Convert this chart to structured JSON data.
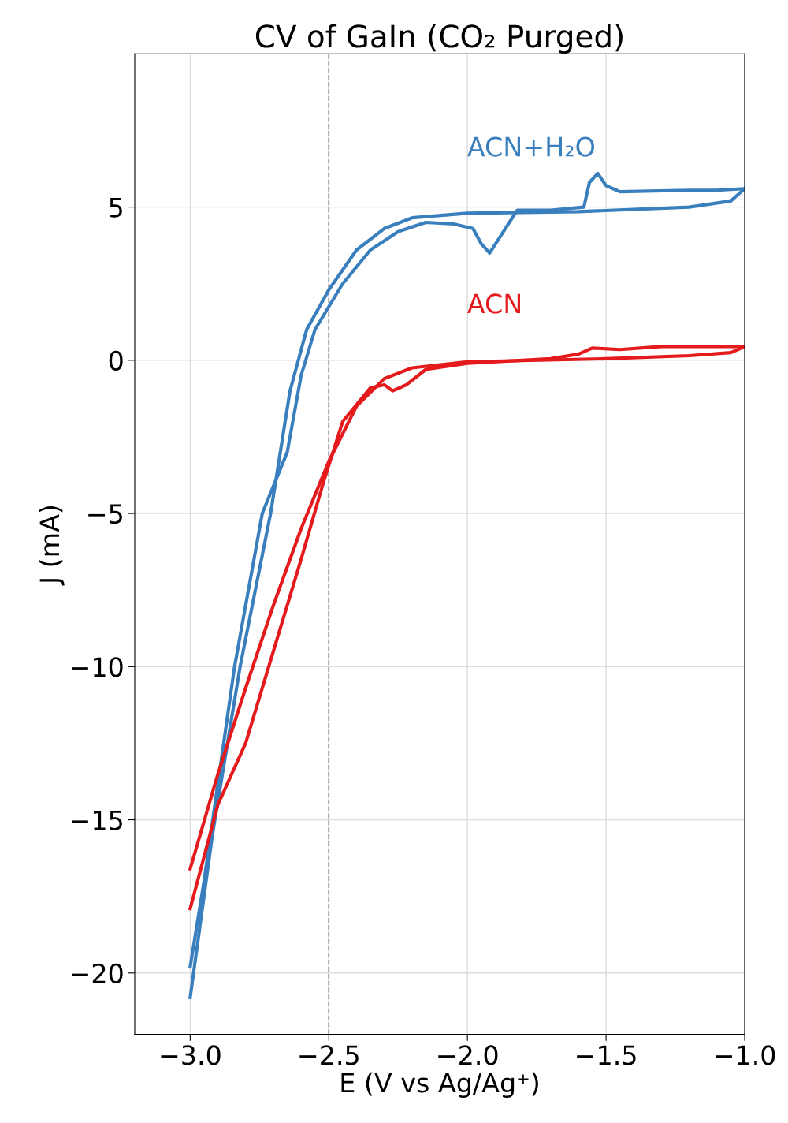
{
  "chart_data": {
    "type": "line",
    "title": "CV of GaIn (CO₂ Purged)",
    "xlabel": "E (V vs Ag/Ag⁺)",
    "ylabel": "J (mA)",
    "xlim": [
      -3.2,
      -1.0
    ],
    "xticks": [
      {
        "value": -3.0,
        "label": "−3.0"
      },
      {
        "value": -2.5,
        "label": "−2.5"
      },
      {
        "value": -2.0,
        "label": "−2.0"
      },
      {
        "value": -1.5,
        "label": "−1.5"
      },
      {
        "value": -1.0,
        "label": "−1.0"
      }
    ],
    "ylim": [
      -22,
      10
    ],
    "yticks": [
      {
        "value": -20,
        "label": "−20"
      },
      {
        "value": -15,
        "label": "−15"
      },
      {
        "value": -10,
        "label": "−10"
      },
      {
        "value": -5,
        "label": "−5"
      },
      0,
      5
    ],
    "grid": true,
    "line_style": "solid",
    "marker": "none",
    "ref_lines": [
      {
        "axis": "x",
        "value": -2.5,
        "color": "#808080",
        "line_style": "dashed"
      }
    ],
    "series": [
      {
        "name": "ACN+H₂O",
        "color": "#3a7fbd",
        "x": [
          -1.0,
          -1.1,
          -1.2,
          -1.45,
          -1.5,
          -1.53,
          -1.56,
          -1.58,
          -1.7,
          -1.82,
          -1.87,
          -1.92,
          -1.95,
          -1.98,
          -2.05,
          -2.15,
          -2.25,
          -2.35,
          -2.45,
          -2.55,
          -2.6,
          -2.65,
          -2.74,
          -2.84,
          -2.95,
          -3.0
        ],
        "values": [
          5.6,
          5.55,
          5.55,
          5.5,
          5.7,
          6.1,
          5.8,
          5.0,
          4.9,
          4.9,
          4.2,
          3.5,
          3.8,
          4.3,
          4.45,
          4.5,
          4.2,
          3.6,
          2.5,
          1.0,
          -0.5,
          -3,
          -5,
          -10,
          -17,
          -19.8
        ]
      },
      {
        "color": "#3a7fbd",
        "x": [
          -3.0,
          -2.92,
          -2.82,
          -2.71,
          -2.64,
          -2.58,
          -2.5,
          -2.4,
          -2.3,
          -2.2,
          -2.0,
          -1.6,
          -1.2,
          -1.05,
          -1.0
        ],
        "values": [
          -20.8,
          -15.5,
          -10,
          -5,
          -1,
          1,
          2.3,
          3.6,
          4.3,
          4.65,
          4.8,
          4.85,
          5.0,
          5.2,
          5.6
        ]
      },
      {
        "name": "ACN",
        "color": "#e41a1c",
        "x": [
          -1.0,
          -1.3,
          -1.45,
          -1.55,
          -1.6,
          -1.7,
          -2.0,
          -2.15,
          -2.22,
          -2.27,
          -2.3,
          -2.35,
          -2.45,
          -2.52,
          -2.6,
          -2.7,
          -2.8,
          -2.9,
          -3.0
        ],
        "values": [
          0.45,
          0.45,
          0.35,
          0.4,
          0.2,
          0.05,
          -0.1,
          -0.3,
          -0.8,
          -1.0,
          -0.8,
          -0.9,
          -2.0,
          -4,
          -6.5,
          -9.5,
          -12.5,
          -14.5,
          -17.9
        ]
      },
      {
        "color": "#e41a1c",
        "x": [
          -3.0,
          -2.9,
          -2.8,
          -2.7,
          -2.6,
          -2.5,
          -2.4,
          -2.3,
          -2.2,
          -2.0,
          -1.5,
          -1.2,
          -1.05,
          -1.0
        ],
        "values": [
          -16.6,
          -13.5,
          -10.7,
          -8,
          -5.5,
          -3.3,
          -1.5,
          -0.6,
          -0.25,
          -0.05,
          0.05,
          0.15,
          0.25,
          0.45
        ]
      }
    ]
  }
}
